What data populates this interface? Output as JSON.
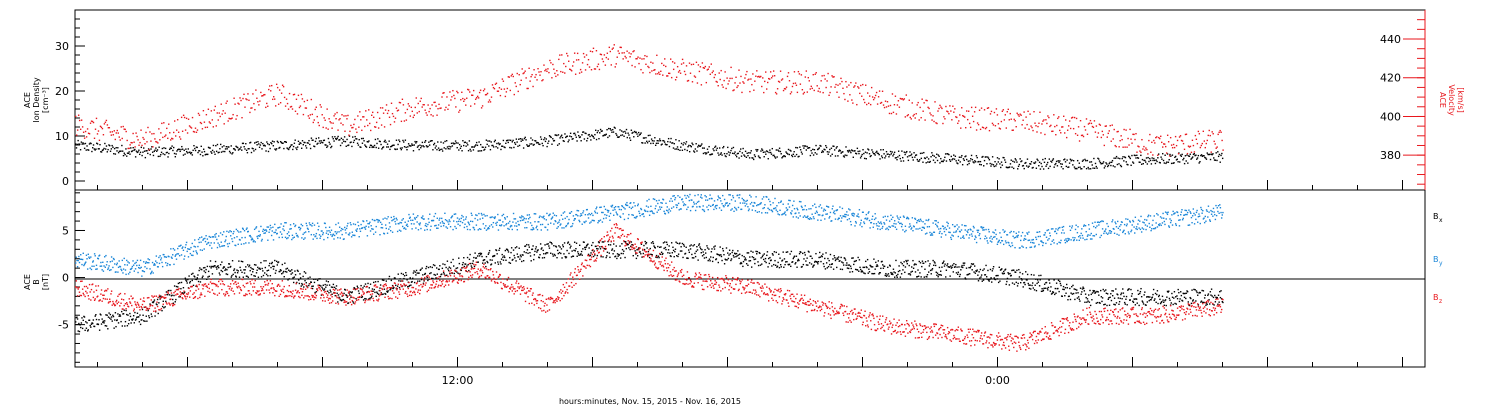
{
  "chart_data": [
    {
      "type": "scatter",
      "panel": "top",
      "x_hours_range": [
        3.5,
        33.5
      ],
      "left_axis": {
        "label_lines": [
          "ACE",
          "Ion Density",
          "[cm⁻³]"
        ],
        "ticks": [
          "0",
          "10",
          "20",
          "30"
        ],
        "ylim": [
          -2,
          38
        ],
        "color": "#000000"
      },
      "right_axis": {
        "label_lines": [
          "ACE",
          "Velocity",
          "[km/s]"
        ],
        "ticks": [
          "380",
          "400",
          "420",
          "440"
        ],
        "ylim": [
          362,
          455
        ],
        "color": "#e8171d"
      },
      "series": [
        {
          "axis": "left",
          "color": "#000000",
          "x": [
            3.5,
            5.0,
            6.5,
            8.0,
            9.5,
            11.0,
            12.5,
            14.0,
            15.5,
            17.0,
            18.5,
            20.0,
            21.5,
            23.0,
            24.5,
            26.0,
            27.5,
            29.0
          ],
          "y": [
            8,
            6.5,
            7,
            8,
            9,
            8,
            8,
            9,
            11,
            8,
            6,
            7,
            6,
            5,
            4,
            4,
            5,
            5.5
          ]
        },
        {
          "axis": "right",
          "color": "#e8171d",
          "x": [
            3.5,
            5.0,
            6.5,
            8.0,
            9.5,
            11.0,
            12.5,
            14.0,
            15.5,
            17.0,
            18.5,
            20.0,
            21.5,
            23.0,
            24.5,
            26.0,
            27.5,
            29.0
          ],
          "y": [
            396,
            388,
            400,
            412,
            395,
            405,
            410,
            425,
            432,
            424,
            418,
            418,
            408,
            400,
            398,
            393,
            385,
            388
          ]
        }
      ]
    },
    {
      "type": "scatter",
      "panel": "bottom",
      "x_hours_range": [
        3.5,
        33.5
      ],
      "left_axis": {
        "label_lines": [
          "ACE",
          "B",
          "[nT]"
        ],
        "ticks": [
          "-5",
          "0",
          "5"
        ],
        "ylim": [
          -9.5,
          9.3
        ],
        "color": "#000000"
      },
      "series": [
        {
          "name": "Bx",
          "label_main": "B",
          "label_sub": "x",
          "color": "#000000",
          "x": [
            3.5,
            5.0,
            6.5,
            8.0,
            9.5,
            11.0,
            12.5,
            14.0,
            15.5,
            17.0,
            18.5,
            20.0,
            21.5,
            23.0,
            24.5,
            26.0,
            27.5,
            29.0
          ],
          "y": [
            -5,
            -4,
            1,
            1,
            -2,
            0,
            2,
            3,
            3,
            3,
            2,
            2,
            1,
            1,
            0,
            -2,
            -2,
            -2
          ]
        },
        {
          "name": "By",
          "label_main": "B",
          "label_sub": "y",
          "color": "#1a86d8",
          "x": [
            3.5,
            5.0,
            6.5,
            8.0,
            9.5,
            11.0,
            12.5,
            14.0,
            15.5,
            17.0,
            18.5,
            20.0,
            21.5,
            23.0,
            24.5,
            26.0,
            27.5,
            29.0
          ],
          "y": [
            2,
            1,
            4,
            5,
            5,
            6,
            6,
            6,
            7,
            8,
            8,
            7,
            6,
            5,
            4,
            5,
            6,
            7
          ]
        },
        {
          "name": "Bz",
          "label_main": "B",
          "label_sub": "z",
          "color": "#e8171d",
          "x": [
            3.5,
            5.0,
            6.5,
            8.0,
            9.5,
            11.0,
            12.5,
            14.0,
            15.5,
            17.0,
            18.5,
            20.0,
            21.5,
            23.0,
            24.5,
            26.0,
            27.5,
            29.0
          ],
          "y": [
            -1,
            -3,
            -1,
            -1,
            -2,
            -1,
            1,
            -3,
            5,
            0,
            -1,
            -3,
            -5,
            -6,
            -7,
            -4,
            -4,
            -3
          ]
        }
      ]
    }
  ],
  "x_axis": {
    "tick_labels": [
      {
        "hour": 12,
        "text": "12:00"
      },
      {
        "hour": 24,
        "text": "0:00"
      }
    ],
    "xlabel": "hours:minutes, Nov. 15, 2015 - Nov. 16, 2015"
  }
}
